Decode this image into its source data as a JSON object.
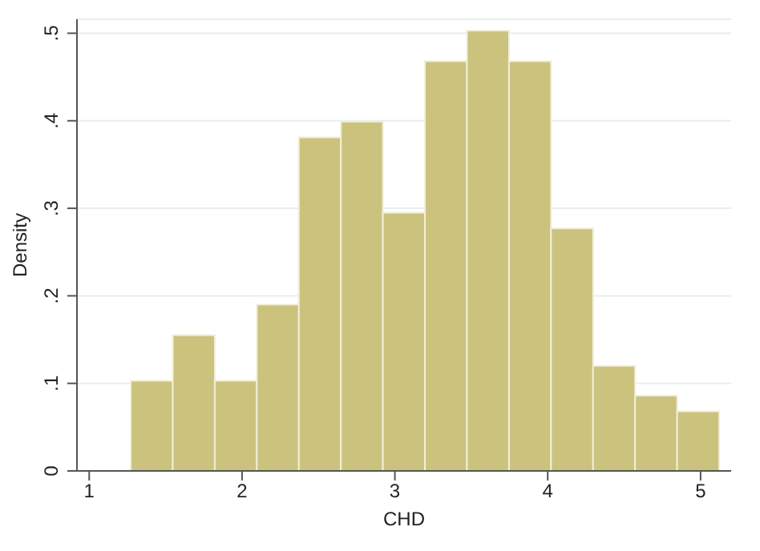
{
  "chart_data": {
    "type": "histogram",
    "xlabel": "CHD",
    "ylabel": "Density",
    "color": "#cbc27e",
    "bins": [
      1.275,
      1.55,
      1.825,
      2.1,
      2.375,
      2.65,
      2.925,
      3.2,
      3.475,
      3.75,
      4.025,
      4.3,
      4.575,
      4.85,
      5.125
    ],
    "values": [
      0.103,
      0.155,
      0.103,
      0.19,
      0.381,
      0.399,
      0.295,
      0.468,
      0.503,
      0.468,
      0.277,
      0.12,
      0.086,
      0.068
    ],
    "xlim": [
      0.92,
      5.2
    ],
    "xticks": [
      1,
      2,
      3,
      4,
      5
    ],
    "ylim": [
      0,
      0.516
    ],
    "yticks": [
      0,
      {
        "value": 0.1,
        "label": ".1"
      },
      {
        "value": 0.2,
        "label": ".2"
      },
      {
        "value": 0.3,
        "label": ".3"
      },
      {
        "value": 0.4,
        "label": ".4"
      },
      {
        "value": 0.5,
        "label": ".5"
      }
    ],
    "grid": "y"
  }
}
